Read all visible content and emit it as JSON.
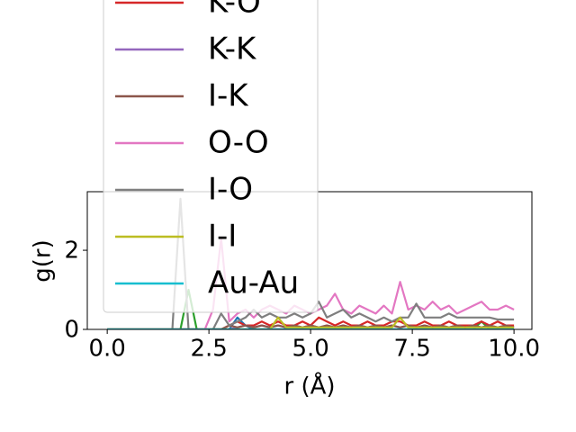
{
  "chart_data": {
    "type": "line",
    "xlabel": "r (Å)",
    "ylabel": "g(r)",
    "xlim": [
      -0.49,
      10.44
    ],
    "ylim": [
      0,
      3.48
    ],
    "xticks": [
      {
        "value": 0,
        "label": "0.0"
      },
      2.5,
      {
        "value": 5,
        "label": "5.0"
      },
      7.5,
      {
        "value": 10,
        "label": "10.0"
      }
    ],
    "yticks": [
      0,
      2
    ],
    "legend": "upper left",
    "x": [
      0,
      0.2,
      0.4,
      0.6,
      0.8,
      1,
      1.2,
      1.4,
      1.6,
      1.8,
      2,
      2.2,
      2.4,
      2.6,
      2.8,
      3,
      3.2,
      3.4,
      3.6,
      3.8,
      4,
      4.2,
      4.4,
      4.6,
      4.8,
      5,
      5.2,
      5.4,
      5.6,
      5.8,
      6,
      6.2,
      6.4,
      6.6,
      6.8,
      7,
      7.2,
      7.4,
      7.6,
      7.8,
      8,
      8.2,
      8.4,
      8.6,
      8.8,
      9,
      9.2,
      9.4,
      9.6,
      9.8,
      10
    ],
    "series": [
      {
        "color": "#1f77b4",
        "values": [
          0,
          0,
          0,
          0,
          0,
          0,
          0,
          0,
          0,
          0,
          0,
          0,
          0,
          0,
          0,
          0,
          0.3,
          0.1,
          0,
          0,
          0,
          0,
          0,
          0,
          0,
          0,
          0,
          0,
          0,
          0,
          0,
          0,
          0,
          0,
          0,
          0,
          0,
          0,
          0,
          0,
          0,
          0,
          0,
          0,
          0,
          0,
          0,
          0,
          0,
          0,
          0
        ]
      },
      {
        "color": "#2ca02c",
        "values": [
          0,
          0,
          0,
          0,
          0,
          0,
          0,
          0,
          0,
          0,
          1.0,
          0,
          0,
          0,
          0,
          0,
          0,
          0,
          0,
          0,
          0,
          0,
          0,
          0,
          0,
          0,
          0,
          0,
          0,
          0,
          0,
          0,
          0,
          0,
          0,
          0,
          0,
          0,
          0,
          0,
          0,
          0,
          0,
          0,
          0,
          0,
          0.2,
          0,
          0,
          0,
          0
        ]
      },
      {
        "name": "K-O",
        "color": "#d62728",
        "values": [
          0,
          0,
          0,
          0,
          0,
          0,
          0,
          0,
          0,
          0,
          0,
          0,
          0,
          0,
          0,
          0.1,
          0.2,
          0.1,
          0.1,
          0.2,
          0.1,
          0.2,
          0.1,
          0.1,
          0.2,
          0.1,
          0.3,
          0.2,
          0.1,
          0.2,
          0.1,
          0.1,
          0.2,
          0.1,
          0.1,
          0.2,
          0.2,
          0.1,
          0.1,
          0.2,
          0.1,
          0.1,
          0.2,
          0.1,
          0.1,
          0.1,
          0.2,
          0.1,
          0.2,
          0.1,
          0.1
        ]
      },
      {
        "name": "K-K",
        "color": "#9467bd",
        "values": [
          0,
          0,
          0,
          0,
          0,
          0,
          0,
          0,
          0,
          0,
          0,
          0,
          0,
          0,
          0,
          0,
          0.05,
          0.1,
          0.05,
          0.1,
          0.05,
          0.1,
          0.05,
          0.1,
          0.05,
          0.1,
          0.05,
          0.1,
          0.05,
          0.1,
          0.05,
          0.1,
          0.05,
          0.1,
          0.05,
          0.1,
          0.05,
          0.1,
          0.05,
          0.1,
          0.05,
          0.1,
          0.05,
          0.1,
          0.05,
          0.1,
          0.05,
          0.1,
          0.05,
          0.1,
          0.05
        ]
      },
      {
        "name": "I-K",
        "color": "#8c564b",
        "values": [
          0,
          0,
          0,
          0,
          0,
          0,
          0,
          0,
          0,
          0,
          0,
          0,
          0,
          0,
          0,
          0.1,
          0.05,
          0.1,
          0.05,
          0.1,
          0.05,
          0.1,
          0.05,
          0.1,
          0.05,
          0.1,
          0.05,
          0.1,
          0.05,
          0.1,
          0.05,
          0.1,
          0.05,
          0.1,
          0.05,
          0.1,
          0.05,
          0.1,
          0.05,
          0.1,
          0.05,
          0.1,
          0.05,
          0.1,
          0.05,
          0.1,
          0.05,
          0.1,
          0.05,
          0.1,
          0.05
        ]
      },
      {
        "name": "O-O",
        "color": "#e377c2",
        "values": [
          0,
          0,
          0,
          0,
          0,
          0,
          0,
          0,
          0,
          0,
          0,
          0,
          0,
          0.5,
          2.3,
          0.2,
          0.4,
          0.5,
          0.3,
          0.5,
          0.6,
          0.5,
          0.4,
          0.6,
          0.5,
          0.4,
          0.5,
          0.6,
          0.9,
          0.5,
          0.4,
          0.6,
          0.5,
          0.4,
          0.6,
          0.4,
          1.2,
          0.5,
          0.6,
          0.5,
          0.7,
          0.5,
          0.6,
          0.4,
          0.5,
          0.6,
          0.7,
          0.5,
          0.5,
          0.6,
          0.5
        ]
      },
      {
        "name": "I-O",
        "color": "#7f7f7f",
        "values": [
          0,
          0,
          0,
          0,
          0,
          0,
          0,
          0,
          0,
          3.3,
          0,
          0,
          0,
          0,
          0.4,
          0.1,
          0.2,
          0.3,
          0.5,
          0.3,
          0.4,
          0.3,
          0.3,
          0.4,
          0.3,
          0.4,
          0.7,
          0.3,
          0.4,
          0.5,
          0.3,
          0.4,
          0.3,
          0.2,
          0.3,
          0.2,
          0.3,
          0.3,
          0.65,
          0.3,
          0.3,
          0.3,
          0.4,
          0.3,
          0.3,
          0.3,
          0.3,
          0.3,
          0.25,
          0.25,
          0.25
        ]
      },
      {
        "name": "I-I",
        "color": "#bcbd22",
        "values": [
          0,
          0,
          0,
          0,
          0,
          0,
          0,
          0,
          0,
          0,
          0,
          0,
          0,
          0,
          0,
          0,
          0,
          0,
          0,
          0,
          0,
          0.3,
          0.05,
          0.05,
          0.05,
          0.05,
          0.05,
          0.05,
          0.05,
          0.05,
          0.05,
          0.05,
          0.05,
          0.05,
          0.05,
          0.05,
          0.3,
          0.05,
          0.05,
          0.05,
          0.05,
          0.05,
          0.05,
          0.05,
          0.05,
          0.05,
          0.05,
          0.05,
          0.05,
          0.05,
          0.05
        ]
      },
      {
        "name": "Au-Au",
        "color": "#17becf",
        "values": [
          0,
          0,
          0,
          0,
          0,
          0,
          0,
          0,
          0,
          0,
          0,
          0,
          0,
          0,
          0,
          0,
          0,
          0,
          0,
          0,
          0,
          0,
          0,
          0,
          0,
          0,
          0,
          0,
          0,
          0,
          0,
          0,
          0,
          0,
          0,
          0,
          0,
          0,
          0,
          0,
          0,
          0,
          0,
          0,
          0,
          0,
          0,
          0,
          0,
          0,
          0
        ]
      }
    ]
  }
}
